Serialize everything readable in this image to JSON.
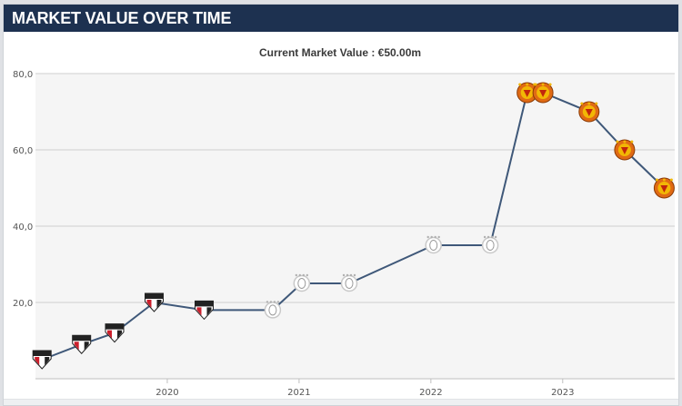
{
  "header": {
    "title": "MARKET VALUE OVER TIME"
  },
  "colors": {
    "header_bg": "#1d3150",
    "plot_bg": "#f5f5f5",
    "line": "#3f5879",
    "club_a_red": "#cc1f2c",
    "club_b_silver": "#c8c8c8",
    "club_c_orange": "#e06a14"
  },
  "chart_data": {
    "type": "line",
    "title": "",
    "subtitle": "Current Market Value : €50.00m",
    "xlabel": "",
    "ylabel": "",
    "ylim": [
      0,
      80
    ],
    "yticks": [
      {
        "value": 20,
        "label": "20,0"
      },
      {
        "value": 40,
        "label": "40,0"
      },
      {
        "value": 60,
        "label": "60,0"
      },
      {
        "value": 80,
        "label": "80,0"
      }
    ],
    "xticks": [
      {
        "value": 2020.0,
        "label": "2020"
      },
      {
        "value": 2021.0,
        "label": "2021"
      },
      {
        "value": 2022.0,
        "label": "2022"
      },
      {
        "value": 2023.0,
        "label": "2023"
      }
    ],
    "grid": "horizontal",
    "x": [
      2019.05,
      2019.35,
      2019.6,
      2019.9,
      2020.28,
      2020.8,
      2021.02,
      2021.38,
      2022.02,
      2022.45,
      2022.73,
      2022.85,
      2023.2,
      2023.47,
      2023.77
    ],
    "y": [
      5,
      9,
      12,
      20,
      18,
      18,
      25,
      25,
      35,
      35,
      75,
      75,
      70,
      60,
      50
    ],
    "markers": [
      "club-a-crest",
      "club-a-crest",
      "club-a-crest",
      "club-a-crest",
      "club-a-crest",
      "club-b-crest",
      "club-b-crest",
      "club-b-crest",
      "club-b-crest",
      "club-b-crest",
      "club-c-crest",
      "club-c-crest",
      "club-c-crest",
      "club-c-crest",
      "club-c-crest"
    ]
  }
}
